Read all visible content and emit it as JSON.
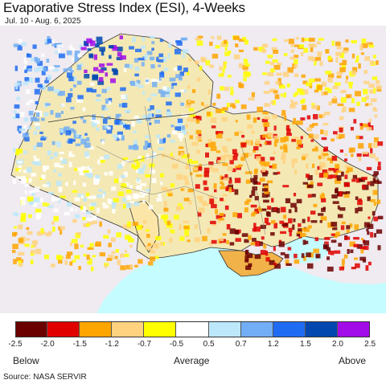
{
  "header": {
    "title": "Evaporative Stress Index (ESI), 4-Weeks",
    "subtitle": "Jul. 10 - Aug. 6, 2025"
  },
  "map": {
    "background_color": "#efebf0",
    "sea_color": "#c5fcff",
    "border_color": "#333333"
  },
  "legend": {
    "colors": [
      "#6b0000",
      "#e00000",
      "#ffa500",
      "#ffd27f",
      "#ffff00",
      "#ffffff",
      "#bde8fc",
      "#72aef5",
      "#1f6cf2",
      "#0048b0",
      "#a10ce8"
    ],
    "ticks": [
      "-2.5",
      "-2.0",
      "-1.5",
      "-1.2",
      "-0.7",
      "-0.5",
      "0.5",
      "0.7",
      "1.2",
      "1.5",
      "2.0",
      "2.5"
    ],
    "below_label": "Below",
    "average_label": "Average",
    "above_label": "Above"
  },
  "footer": {
    "source": "Source: NASA SERVIR"
  }
}
